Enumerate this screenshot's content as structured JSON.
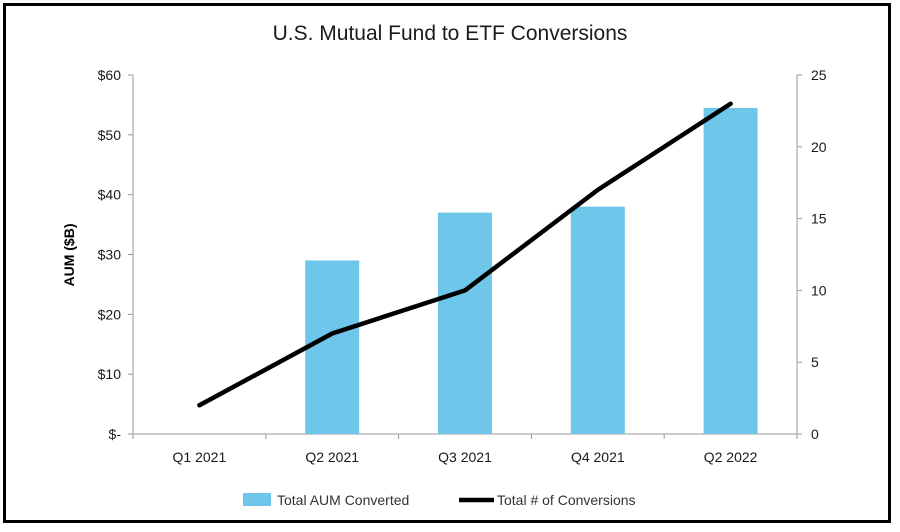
{
  "chart_data": {
    "type": "bar",
    "title": "U.S. Mutual Fund to ETF Conversions",
    "ylabel": "AUM ($B)",
    "categories": [
      "Q1 2021",
      "Q2 2021",
      "Q3 2021",
      "Q4 2021",
      "Q2 2022"
    ],
    "ylim": [
      0,
      60
    ],
    "y2lim": [
      0,
      25
    ],
    "y_ticks": [
      "$-",
      "$10",
      "$20",
      "$30",
      "$40",
      "$50",
      "$60"
    ],
    "y2_ticks": [
      "0",
      "5",
      "10",
      "15",
      "20",
      "25"
    ],
    "series": [
      {
        "name": "Total AUM Converted",
        "type": "bar",
        "axis": "left",
        "color": "#6ec6ea",
        "values": [
          0,
          29,
          37,
          38,
          54.5
        ]
      },
      {
        "name": "Total # of Conversions",
        "type": "line",
        "axis": "right",
        "color": "#000000",
        "values": [
          2,
          7,
          10,
          17,
          23
        ]
      }
    ],
    "grid": false,
    "legend_position": "bottom"
  }
}
